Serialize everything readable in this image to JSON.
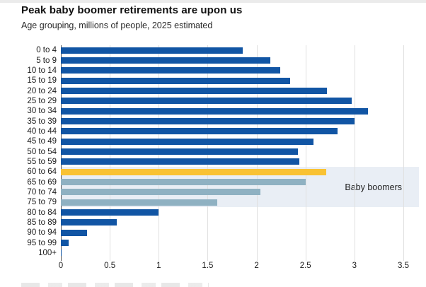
{
  "header": {
    "title": "Peak baby boomer retirements are upon us",
    "subtitle": "Age grouping, millions of people, 2025 estimated"
  },
  "chart_data": {
    "type": "bar",
    "orientation": "horizontal",
    "title": "Peak baby boomer retirements are upon us",
    "subtitle": "Age grouping, millions of people, 2025 estimated",
    "xlabel": "",
    "ylabel": "Age grouping",
    "xlim": [
      0,
      3.5
    ],
    "grid": "vertical",
    "categories": [
      "0 to 4",
      "5 to 9",
      "10 to 14",
      "15 to 19",
      "20 to 24",
      "25 to 29",
      "30 to 34",
      "35 to 39",
      "40 to 44",
      "45 to 49",
      "50 to 54",
      "55 to 59",
      "60 to 64",
      "65 to 69",
      "70 to 74",
      "75 to 79",
      "80 to 84",
      "85 to 89",
      "90 to 94",
      "95 to 99",
      "100+"
    ],
    "values": [
      1.86,
      2.14,
      2.24,
      2.34,
      2.72,
      2.97,
      3.14,
      3.0,
      2.83,
      2.58,
      2.42,
      2.44,
      2.71,
      2.5,
      2.04,
      1.6,
      1.0,
      0.57,
      0.27,
      0.08,
      0.01
    ],
    "bar_colors": [
      "#1155a4",
      "#1155a4",
      "#1155a4",
      "#1155a4",
      "#1155a4",
      "#1155a4",
      "#1155a4",
      "#1155a4",
      "#1155a4",
      "#1155a4",
      "#1155a4",
      "#1155a4",
      "#f9c233",
      "#8fb1c2",
      "#8fb1c2",
      "#8fb1c2",
      "#1155a4",
      "#1155a4",
      "#1155a4",
      "#1155a4",
      "#1155a4"
    ],
    "xticks": [
      0,
      0.5,
      1,
      1.5,
      2,
      2.5,
      3,
      3.5
    ],
    "xtick_labels": [
      "0",
      "0.5",
      "1",
      "1.5",
      "2",
      "2.5",
      "3",
      "3.5"
    ],
    "annotation": {
      "label": "Baby boomers",
      "start_index": 12,
      "end_index": 15,
      "band_color": "#e9eef5"
    },
    "colors": {
      "default_bar": "#1155a4",
      "highlight_bar": "#f9c233",
      "boomer_bar": "#8fb1c2",
      "band": "#e9eef5",
      "gridline": "#e0e0e0",
      "axis_line": "#5a5a5a"
    },
    "legend": null
  }
}
